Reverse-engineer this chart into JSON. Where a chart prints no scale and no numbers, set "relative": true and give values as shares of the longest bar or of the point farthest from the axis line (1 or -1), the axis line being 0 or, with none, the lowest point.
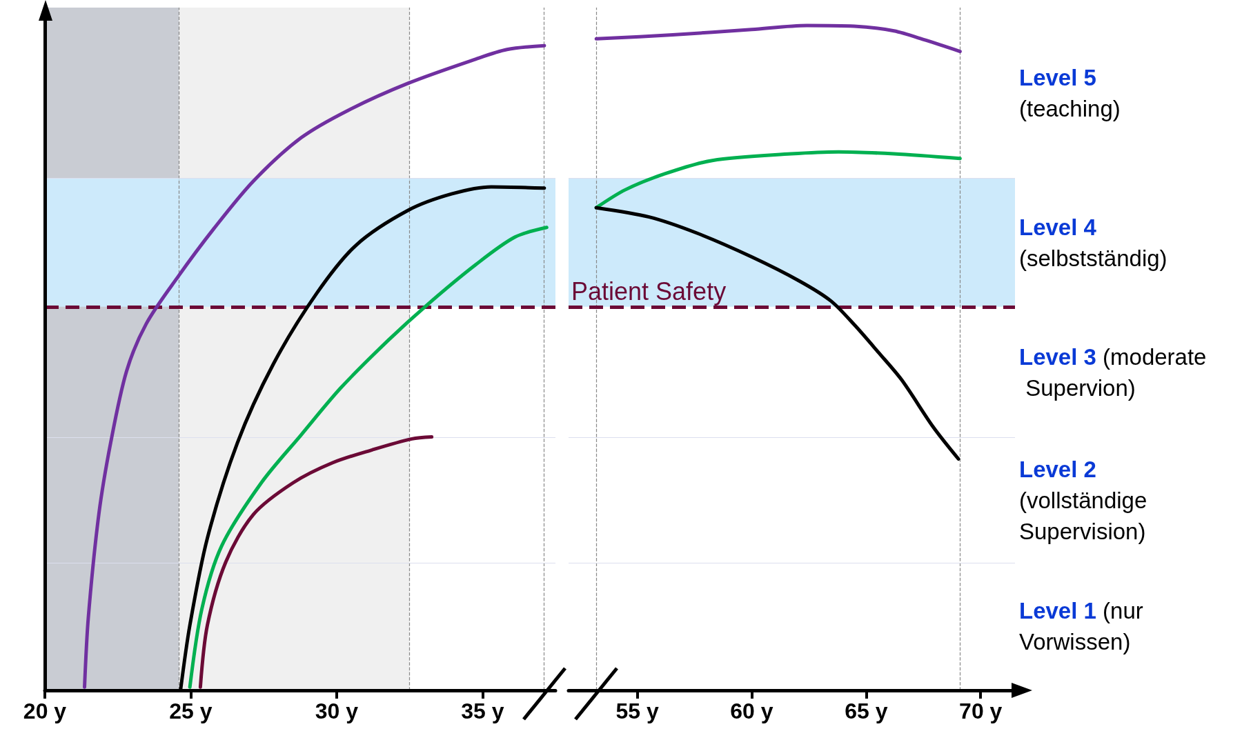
{
  "chart_data": [
    {
      "type": "line",
      "relative": true,
      "marker": "none",
      "line_style": "solid",
      "xlim": [
        20,
        37.5
      ],
      "xticks": [
        {
          "value": 20,
          "label": "20 y"
        },
        {
          "value": 25,
          "label": "25 y"
        },
        {
          "value": 30,
          "label": "30 y"
        },
        {
          "value": 35,
          "label": "35 y"
        }
      ],
      "series": [
        {
          "color": "#7030a0",
          "x": [
            21.36,
            21.49,
            21.85,
            22.26,
            22.8,
            23.48,
            24.57,
            25.79,
            27.15,
            28.78,
            30.41,
            32.47,
            34.76,
            35.84,
            37.12
          ],
          "values": [
            0.005,
            0.113,
            0.273,
            0.385,
            0.495,
            0.569,
            0.642,
            0.716,
            0.79,
            0.857,
            0.9,
            0.942,
            0.979,
            0.994,
            1
          ]
        },
        {
          "color": "#000000",
          "x": [
            24.65,
            24.97,
            25.57,
            26.6,
            27.83,
            29.32,
            30.68,
            32.47,
            33.94,
            35.3,
            37.12
          ],
          "values": [
            0,
            0.101,
            0.236,
            0.384,
            0.506,
            0.616,
            0.691,
            0.745,
            0.77,
            0.781,
            0.779
          ]
        },
        {
          "color": "#00b050",
          "x": [
            24.97,
            25.38,
            26.06,
            27.42,
            28.78,
            30.14,
            31.77,
            33.13,
            34.76,
            36.11,
            37.2
          ],
          "values": [
            0.005,
            0.126,
            0.224,
            0.322,
            0.396,
            0.469,
            0.543,
            0.599,
            0.66,
            0.703,
            0.718
          ]
        },
        {
          "color": "#6b0a36",
          "x": [
            25.33,
            25.57,
            26.2,
            27.15,
            28.51,
            29.86,
            31.22,
            32.58,
            33.26
          ],
          "values": [
            0.005,
            0.101,
            0.199,
            0.273,
            0.322,
            0.353,
            0.373,
            0.39,
            0.393
          ]
        }
      ],
      "bands": [
        {
          "axis": "x",
          "from": 20,
          "to": 24.6,
          "color": "#c9ccd3"
        },
        {
          "axis": "x",
          "from": 24.6,
          "to": 32.5,
          "color": "#f0f0f0"
        },
        {
          "axis": "y",
          "from": 0.595,
          "to": 0.794,
          "color": "#cdeafb"
        }
      ],
      "ref_lines": [
        {
          "axis": "x",
          "value": 24.6,
          "color": "#888888",
          "line_style": "dashed"
        },
        {
          "axis": "x",
          "value": 32.5,
          "color": "#888888",
          "line_style": "dashed"
        },
        {
          "axis": "x",
          "value": 37.1,
          "color": "#888888",
          "line_style": "dashed"
        },
        {
          "axis": "y",
          "value": 0.198,
          "color": "#dcdfee",
          "line_style": "solid"
        },
        {
          "axis": "y",
          "value": 0.392,
          "color": "#dcdfee",
          "line_style": "solid"
        },
        {
          "axis": "y",
          "value": 0.794,
          "color": "#dcdfee",
          "line_style": "solid"
        },
        {
          "axis": "y",
          "value": 0.595,
          "color": "#6b0a36",
          "line_style": "dashed"
        }
      ]
    },
    {
      "type": "line",
      "relative": true,
      "marker": "none",
      "line_style": "solid",
      "xlim": [
        52,
        71.5
      ],
      "xticks": [
        {
          "value": 55,
          "label": "55 y"
        },
        {
          "value": 60,
          "label": "60 y"
        },
        {
          "value": 65,
          "label": "65 y"
        },
        {
          "value": 70,
          "label": "70 y"
        }
      ],
      "series": [
        {
          "color": "#7030a0",
          "x": [
            53.21,
            56.55,
            60,
            62.41,
            64.48,
            66.21,
            67.59,
            69.1
          ],
          "values": [
            0.98,
            0.986,
            0.994,
            1,
            0.999,
            0.992,
            0.978,
            0.961
          ]
        },
        {
          "color": "#00b050",
          "x": [
            53.21,
            54.48,
            56.21,
            58.28,
            61.72,
            63.79,
            66.21,
            69.1
          ],
          "values": [
            0.726,
            0.753,
            0.777,
            0.797,
            0.807,
            0.81,
            0.807,
            0.8
          ]
        },
        {
          "color": "#000000",
          "x": [
            53.21,
            55.52,
            57.59,
            60,
            62.07,
            63.45,
            64.48,
            65.52,
            66.55,
            67.93,
            69.03
          ],
          "values": [
            0.726,
            0.712,
            0.688,
            0.652,
            0.616,
            0.586,
            0.55,
            0.509,
            0.467,
            0.396,
            0.348
          ]
        }
      ],
      "bands": [
        {
          "axis": "y",
          "from": 0.577,
          "to": 0.77,
          "color": "#cdeafb"
        }
      ],
      "ref_lines": [
        {
          "axis": "x",
          "value": 53.2,
          "color": "#888888",
          "line_style": "dashed"
        },
        {
          "axis": "x",
          "value": 69.1,
          "color": "#888888",
          "line_style": "dashed"
        },
        {
          "axis": "y",
          "value": 0.192,
          "color": "#dcdfee",
          "line_style": "solid"
        },
        {
          "axis": "y",
          "value": 0.38,
          "color": "#dcdfee",
          "line_style": "solid"
        },
        {
          "axis": "y",
          "value": 0.77,
          "color": "#dcdfee",
          "line_style": "solid"
        },
        {
          "axis": "y",
          "value": 0.577,
          "color": "#6b0a36",
          "line_style": "dashed",
          "label": "Patient Safety"
        }
      ],
      "annotations": [
        "Level 5 (teaching)",
        "Level 4 (selbstständig)",
        "Level 3 (moderate Supervion)",
        "Level 2 (vollständige Supervision)",
        "Level 1 (nur Vorwissen)"
      ]
    }
  ]
}
